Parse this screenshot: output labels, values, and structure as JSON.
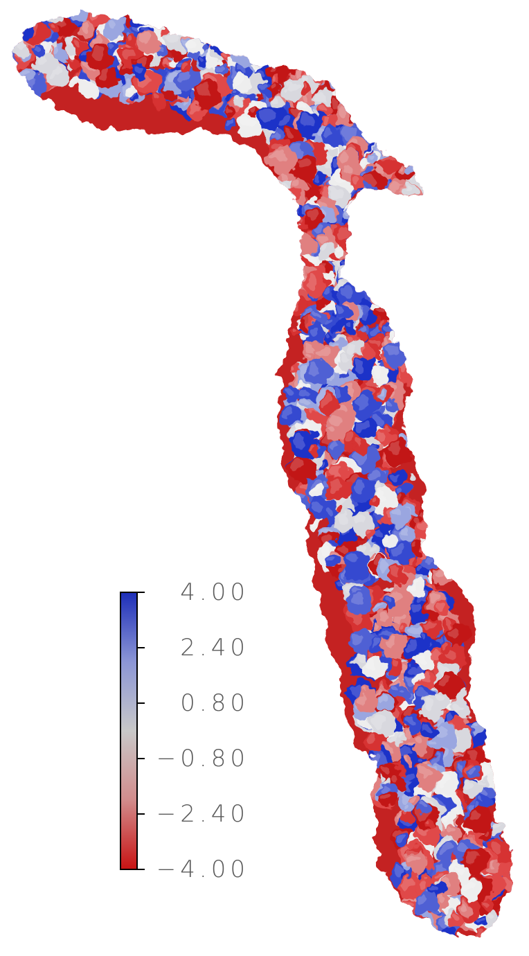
{
  "figure": {
    "subject": "",
    "colorbar": {
      "orientation": "vertical",
      "colors": {
        "max": "#1e2fb8",
        "mid": "#c8c8c8",
        "min": "#c81414"
      },
      "ticks": [
        {
          "value": 4.0,
          "label": "4.00"
        },
        {
          "value": 2.4,
          "label": "2.40"
        },
        {
          "value": 0.8,
          "label": "0.80"
        },
        {
          "value": -0.8,
          "label": "−0.80"
        },
        {
          "value": -2.4,
          "label": "−2.40"
        },
        {
          "value": -4.0,
          "label": "−4.00"
        }
      ],
      "range": [
        -4.0,
        4.0
      ]
    }
  }
}
